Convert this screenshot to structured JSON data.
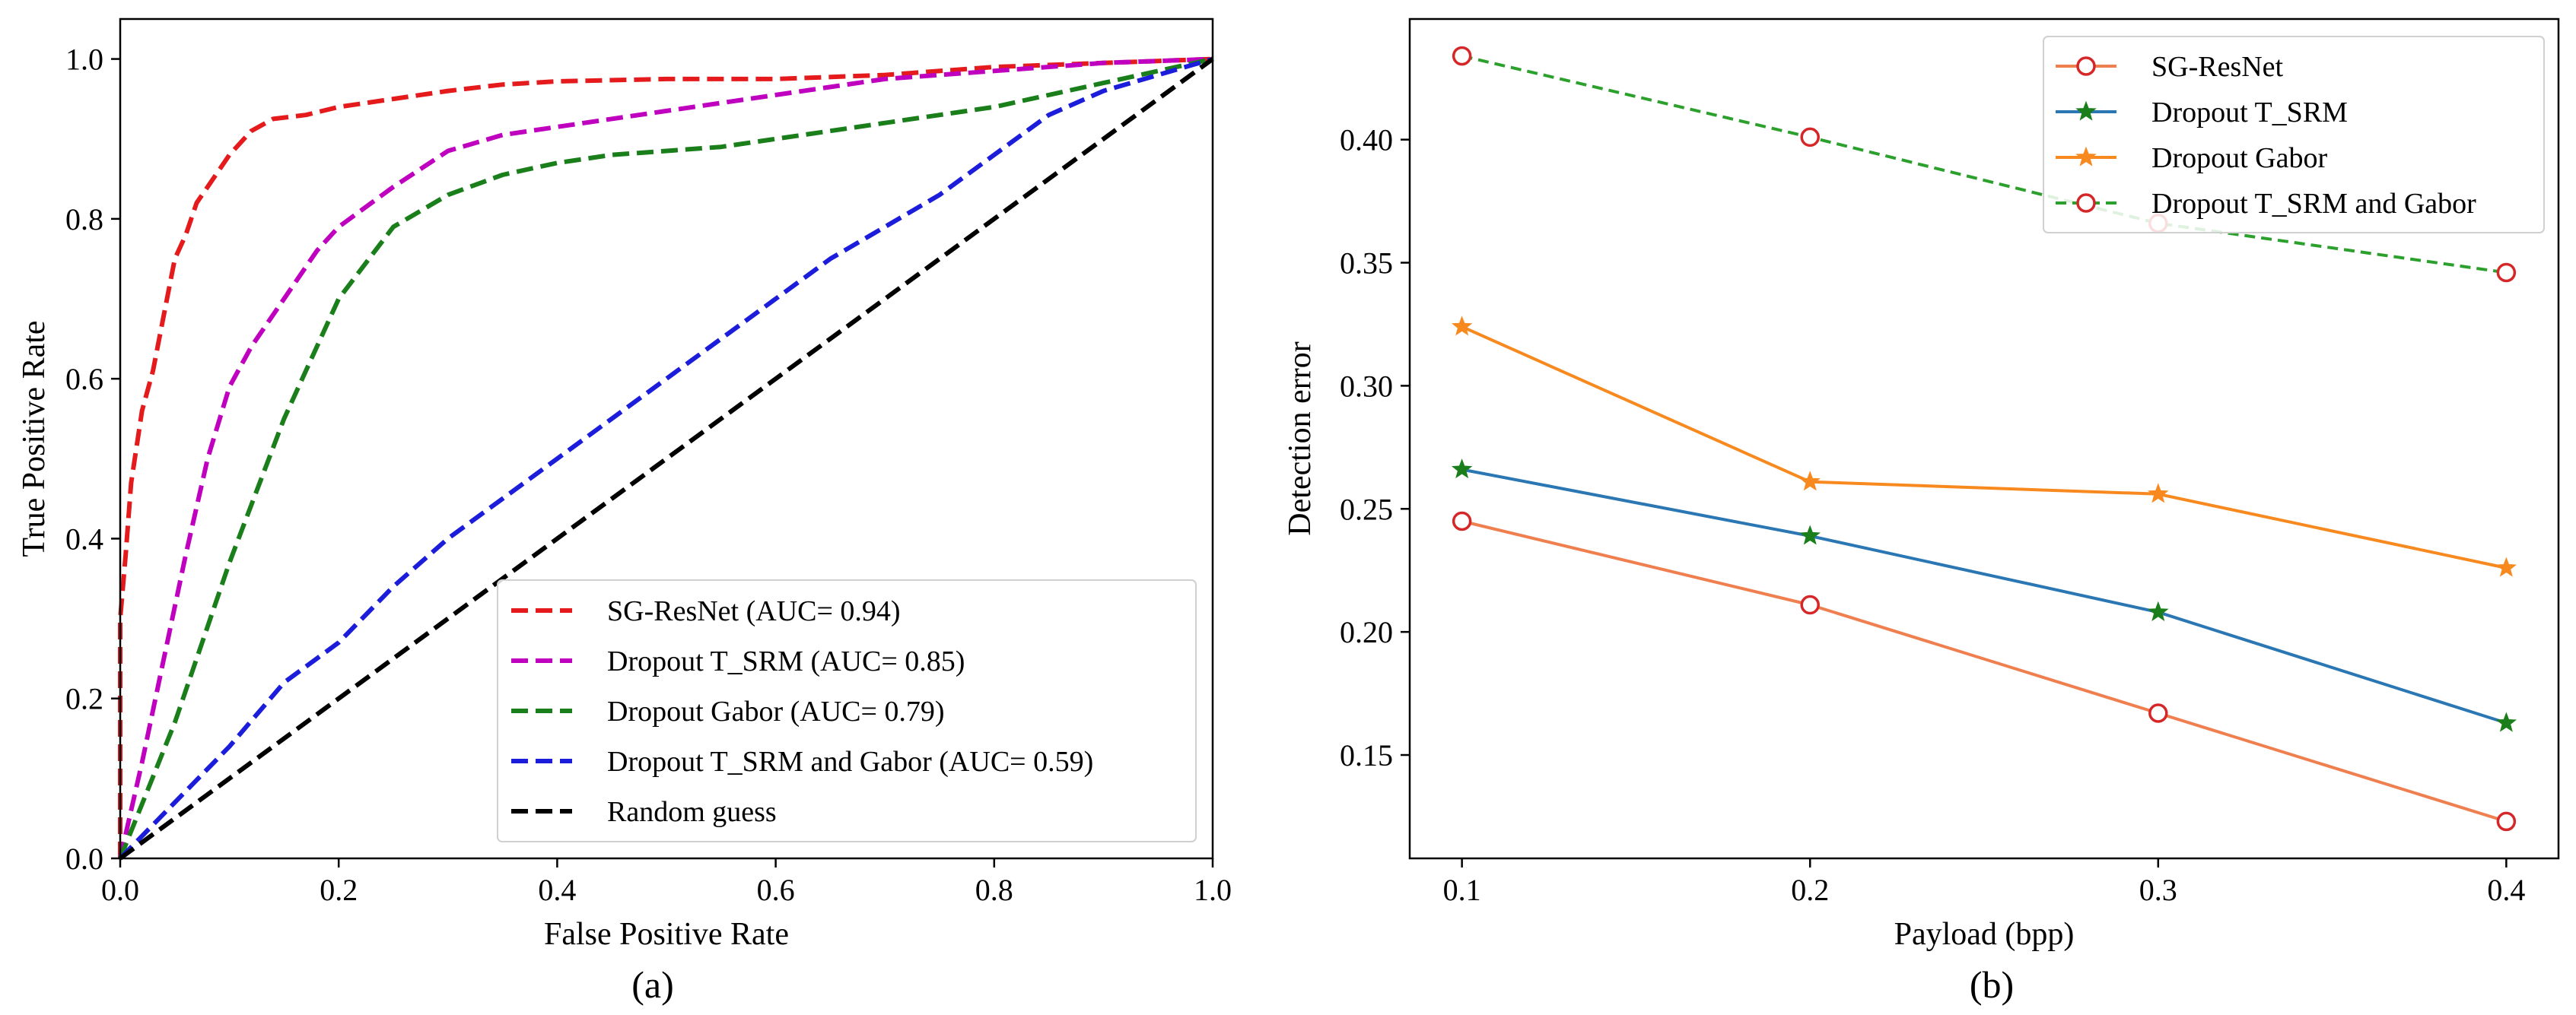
{
  "chart_data": [
    {
      "type": "line",
      "caption": "(a)",
      "xlabel": "False Positive Rate",
      "ylabel": "True Positive Rate",
      "xlim": [
        0,
        1
      ],
      "ylim": [
        0,
        1.05
      ],
      "xticks": [
        "0.0",
        "0.2",
        "0.4",
        "0.6",
        "0.8",
        "1.0"
      ],
      "yticks": [
        "0.0",
        "0.2",
        "0.4",
        "0.6",
        "0.8",
        "1.0"
      ],
      "grid": false,
      "legend_position": "lower-right",
      "series": [
        {
          "name": "SG-ResNet (AUC= 0.94)",
          "color": "#e41a1c",
          "line_style": "dashed",
          "x": [
            0,
            0,
            0.005,
            0.01,
            0.02,
            0.03,
            0.04,
            0.05,
            0.06,
            0.07,
            0.08,
            0.09,
            0.1,
            0.12,
            0.14,
            0.17,
            0.2,
            0.25,
            0.3,
            0.35,
            0.4,
            0.5,
            0.6,
            0.7,
            0.8,
            0.9,
            1.0
          ],
          "y": [
            0,
            0.3,
            0.38,
            0.47,
            0.56,
            0.61,
            0.68,
            0.75,
            0.78,
            0.82,
            0.84,
            0.86,
            0.88,
            0.91,
            0.925,
            0.93,
            0.94,
            0.95,
            0.96,
            0.968,
            0.972,
            0.975,
            0.975,
            0.98,
            0.99,
            0.995,
            1.0
          ]
        },
        {
          "name": "Dropout T_SRM (AUC= 0.85)",
          "color": "#bf00bf",
          "line_style": "dashed",
          "x": [
            0,
            0.02,
            0.04,
            0.06,
            0.08,
            0.1,
            0.12,
            0.15,
            0.18,
            0.2,
            0.25,
            0.3,
            0.35,
            0.4,
            0.5,
            0.6,
            0.7,
            0.8,
            0.9,
            1.0
          ],
          "y": [
            0,
            0.12,
            0.25,
            0.38,
            0.5,
            0.59,
            0.64,
            0.7,
            0.76,
            0.79,
            0.84,
            0.885,
            0.905,
            0.915,
            0.935,
            0.955,
            0.975,
            0.985,
            0.995,
            1.0
          ]
        },
        {
          "name": "Dropout Gabor (AUC= 0.79)",
          "color": "#1a7f1a",
          "line_style": "dashed",
          "x": [
            0,
            0.05,
            0.1,
            0.15,
            0.2,
            0.25,
            0.3,
            0.35,
            0.4,
            0.45,
            0.5,
            0.55,
            0.6,
            0.65,
            0.7,
            0.75,
            0.8,
            0.9,
            1.0
          ],
          "y": [
            0,
            0.17,
            0.37,
            0.55,
            0.7,
            0.79,
            0.83,
            0.855,
            0.87,
            0.88,
            0.885,
            0.89,
            0.9,
            0.91,
            0.92,
            0.93,
            0.94,
            0.97,
            1.0
          ]
        },
        {
          "name": "Dropout T_SRM and Gabor (AUC= 0.59)",
          "color": "#1c1cdb",
          "line_style": "dashed",
          "x": [
            0,
            0.05,
            0.1,
            0.15,
            0.2,
            0.25,
            0.3,
            0.35,
            0.4,
            0.45,
            0.5,
            0.55,
            0.6,
            0.65,
            0.7,
            0.75,
            0.8,
            0.85,
            0.9,
            0.95,
            1.0
          ],
          "y": [
            0,
            0.07,
            0.14,
            0.22,
            0.27,
            0.34,
            0.4,
            0.45,
            0.5,
            0.55,
            0.6,
            0.65,
            0.7,
            0.75,
            0.79,
            0.83,
            0.88,
            0.93,
            0.96,
            0.98,
            1.0
          ]
        },
        {
          "name": "Random guess",
          "color": "#000000",
          "line_style": "dashed",
          "x": [
            0,
            1
          ],
          "y": [
            0,
            1
          ]
        }
      ]
    },
    {
      "type": "line",
      "caption": "(b)",
      "xlabel": "Payload (bpp)",
      "ylabel": "Detection error",
      "categories": [
        "0.1",
        "0.2",
        "0.3",
        "0.4"
      ],
      "x": [
        0.1,
        0.2,
        0.3,
        0.4
      ],
      "xlim": [
        0.085,
        0.415
      ],
      "ylim": [
        0.108,
        0.449
      ],
      "yticks": [
        "0.15",
        "0.20",
        "0.25",
        "0.30",
        "0.35",
        "0.40"
      ],
      "grid": false,
      "legend_position": "top-right",
      "series": [
        {
          "name": "SG-ResNet",
          "color": "#f07f4f",
          "marker_color": "#d62728",
          "marker": "open-circle",
          "line_style": "solid",
          "values": [
            0.245,
            0.211,
            0.167,
            0.123
          ]
        },
        {
          "name": "Dropout T_SRM",
          "color": "#2a77b4",
          "marker_color": "#1a7f1a",
          "marker": "star",
          "line_style": "solid",
          "values": [
            0.266,
            0.239,
            0.208,
            0.163
          ]
        },
        {
          "name": "Dropout Gabor",
          "color": "#f7891e",
          "marker_color": "#f7891e",
          "marker": "star",
          "line_style": "solid",
          "values": [
            0.324,
            0.261,
            0.256,
            0.226
          ]
        },
        {
          "name": "Dropout T_SRM and Gabor",
          "color": "#2ca02c",
          "marker_color": "#d62728",
          "marker": "open-circle",
          "line_style": "dashed",
          "values": [
            0.434,
            0.401,
            0.366,
            0.346
          ]
        }
      ]
    }
  ]
}
